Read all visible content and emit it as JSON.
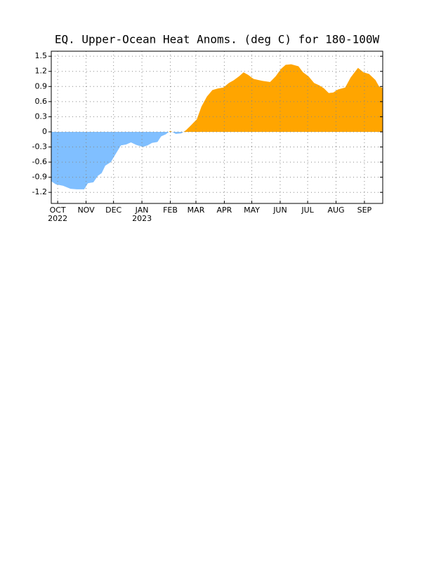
{
  "chart_data": {
    "type": "area",
    "title": "EQ. Upper-Ocean Heat Anoms. (deg C) for 180-100W",
    "x": [
      7,
      12,
      20,
      28,
      35,
      43,
      47,
      53,
      58,
      62,
      66,
      72,
      77,
      83,
      89,
      94,
      100,
      107,
      112,
      117,
      123,
      127,
      132,
      137,
      143,
      149,
      154,
      159,
      166,
      171,
      177,
      183,
      189,
      195,
      201,
      206,
      212,
      217,
      222,
      228,
      233,
      238,
      246,
      252,
      258,
      263,
      269,
      277,
      282,
      288,
      294,
      300,
      305,
      310,
      315,
      320,
      328,
      334,
      342,
      348,
      354,
      361,
      365,
      369
    ],
    "values": [
      -0.98,
      -1.04,
      -1.07,
      -1.13,
      -1.14,
      -1.14,
      -1.02,
      -1.0,
      -0.87,
      -0.82,
      -0.67,
      -0.6,
      -0.45,
      -0.27,
      -0.25,
      -0.21,
      -0.26,
      -0.3,
      -0.27,
      -0.22,
      -0.2,
      -0.09,
      -0.05,
      0.02,
      -0.04,
      -0.03,
      0.03,
      0.12,
      0.25,
      0.5,
      0.7,
      0.83,
      0.86,
      0.88,
      0.97,
      1.02,
      1.1,
      1.18,
      1.13,
      1.05,
      1.03,
      1.01,
      0.99,
      1.1,
      1.25,
      1.33,
      1.34,
      1.3,
      1.18,
      1.1,
      0.97,
      0.92,
      0.86,
      0.77,
      0.78,
      0.84,
      0.88,
      1.08,
      1.27,
      1.18,
      1.15,
      1.03,
      0.9,
      0.87
    ],
    "positive_color": "#ffa500",
    "negative_color": "#80bfff",
    "xlim": [
      7,
      369
    ],
    "ylim": [
      -1.42,
      1.6
    ],
    "yticks": [
      -1.2,
      -0.9,
      -0.6,
      -0.3,
      0,
      0.3,
      0.6,
      0.9,
      1.2,
      1.5
    ],
    "xticks": [
      {
        "value": 14,
        "label": "OCT"
      },
      {
        "value": 45,
        "label": "NOV"
      },
      {
        "value": 75,
        "label": "DEC"
      },
      {
        "value": 106,
        "label": "JAN"
      },
      {
        "value": 137,
        "label": "FEB"
      },
      {
        "value": 165,
        "label": "MAR"
      },
      {
        "value": 196,
        "label": "APR"
      },
      {
        "value": 226,
        "label": "MAY"
      },
      {
        "value": 257,
        "label": "JUN"
      },
      {
        "value": 287,
        "label": "JUL"
      },
      {
        "value": 318,
        "label": "AUG"
      },
      {
        "value": 349,
        "label": "SEP"
      }
    ],
    "year_labels": [
      {
        "value": 14,
        "label": "2022"
      },
      {
        "value": 106,
        "label": "2023"
      }
    ],
    "grid": true
  }
}
